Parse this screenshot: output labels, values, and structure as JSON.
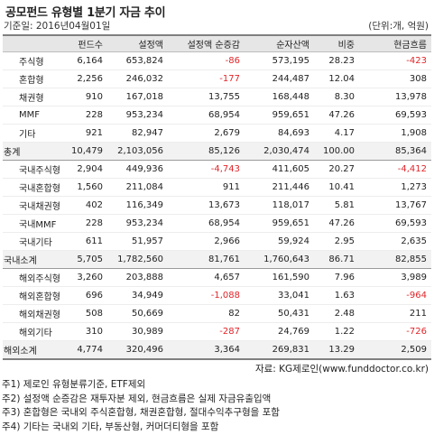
{
  "title": "공모펀드 유형별 1분기 자금 추이",
  "base_date": "기준일: 2016년04월01일",
  "unit": "(단위:개, 억원)",
  "columns": [
    "",
    "펀드수",
    "설정액",
    "설정액 순증감",
    "순자산액",
    "비중",
    "현금흐름"
  ],
  "rows": [
    {
      "label": "주식형",
      "type": "sub",
      "values": [
        "6,164",
        "653,824",
        "-86",
        "573,195",
        "28.23",
        "-423"
      ]
    },
    {
      "label": "혼합형",
      "type": "sub",
      "values": [
        "2,256",
        "246,032",
        "-177",
        "244,487",
        "12.04",
        "308"
      ]
    },
    {
      "label": "채권형",
      "type": "sub",
      "values": [
        "910",
        "167,018",
        "13,755",
        "168,448",
        "8.30",
        "13,978"
      ]
    },
    {
      "label": "MMF",
      "type": "sub",
      "values": [
        "228",
        "953,234",
        "68,954",
        "959,651",
        "47.26",
        "69,593"
      ]
    },
    {
      "label": "기타",
      "type": "sub",
      "values": [
        "921",
        "82,947",
        "2,679",
        "84,693",
        "4.17",
        "1,908"
      ]
    },
    {
      "label": "총계",
      "type": "total",
      "values": [
        "10,479",
        "2,103,056",
        "85,126",
        "2,030,474",
        "100.00",
        "85,364"
      ]
    },
    {
      "label": "국내주식형",
      "type": "sub",
      "values": [
        "2,904",
        "449,936",
        "-4,743",
        "411,605",
        "20.27",
        "-4,412"
      ]
    },
    {
      "label": "국내혼합형",
      "type": "sub",
      "values": [
        "1,560",
        "211,084",
        "911",
        "211,446",
        "10.41",
        "1,273"
      ]
    },
    {
      "label": "국내채권형",
      "type": "sub",
      "values": [
        "402",
        "116,349",
        "13,673",
        "118,017",
        "5.81",
        "13,767"
      ]
    },
    {
      "label": "국내MMF",
      "type": "sub",
      "values": [
        "228",
        "953,234",
        "68,954",
        "959,651",
        "47.26",
        "69,593"
      ]
    },
    {
      "label": "국내기타",
      "type": "sub",
      "values": [
        "611",
        "51,957",
        "2,966",
        "59,924",
        "2.95",
        "2,635"
      ]
    },
    {
      "label": "국내소계",
      "type": "total",
      "values": [
        "5,705",
        "1,782,560",
        "81,761",
        "1,760,643",
        "86.71",
        "82,855"
      ]
    },
    {
      "label": "해외주식형",
      "type": "sub",
      "values": [
        "3,260",
        "203,888",
        "4,657",
        "161,590",
        "7.96",
        "3,989"
      ]
    },
    {
      "label": "해외혼합형",
      "type": "sub",
      "values": [
        "696",
        "34,949",
        "-1,088",
        "33,041",
        "1.63",
        "-964"
      ]
    },
    {
      "label": "해외채권형",
      "type": "sub",
      "values": [
        "508",
        "50,669",
        "82",
        "50,431",
        "2.48",
        "211"
      ]
    },
    {
      "label": "해외기타",
      "type": "sub",
      "values": [
        "310",
        "30,989",
        "-287",
        "24,769",
        "1.22",
        "-726"
      ]
    },
    {
      "label": "해외소계",
      "type": "total last",
      "values": [
        "4,774",
        "320,496",
        "3,364",
        "269,831",
        "13.29",
        "2,509"
      ]
    }
  ],
  "source": "자료: KG제로인(www.funddoctor.co.kr)",
  "notes": [
    "주1) 제로인 유형분류기준, ETF제외",
    "주2) 설정액 순증감은 재투자분 제외, 현금흐름은 실제 자금유출입액",
    "주3) 혼합형은 국내외 주식혼합형, 채권혼합형, 절대수익추구형을 포함",
    "주4) 기타는 국내외 기타, 부동산형, 커머더티형을 포함"
  ],
  "colors": {
    "negative": "#e0262a",
    "header_bg": "#e6e6e6",
    "total_bg": "#f2f2f2"
  }
}
